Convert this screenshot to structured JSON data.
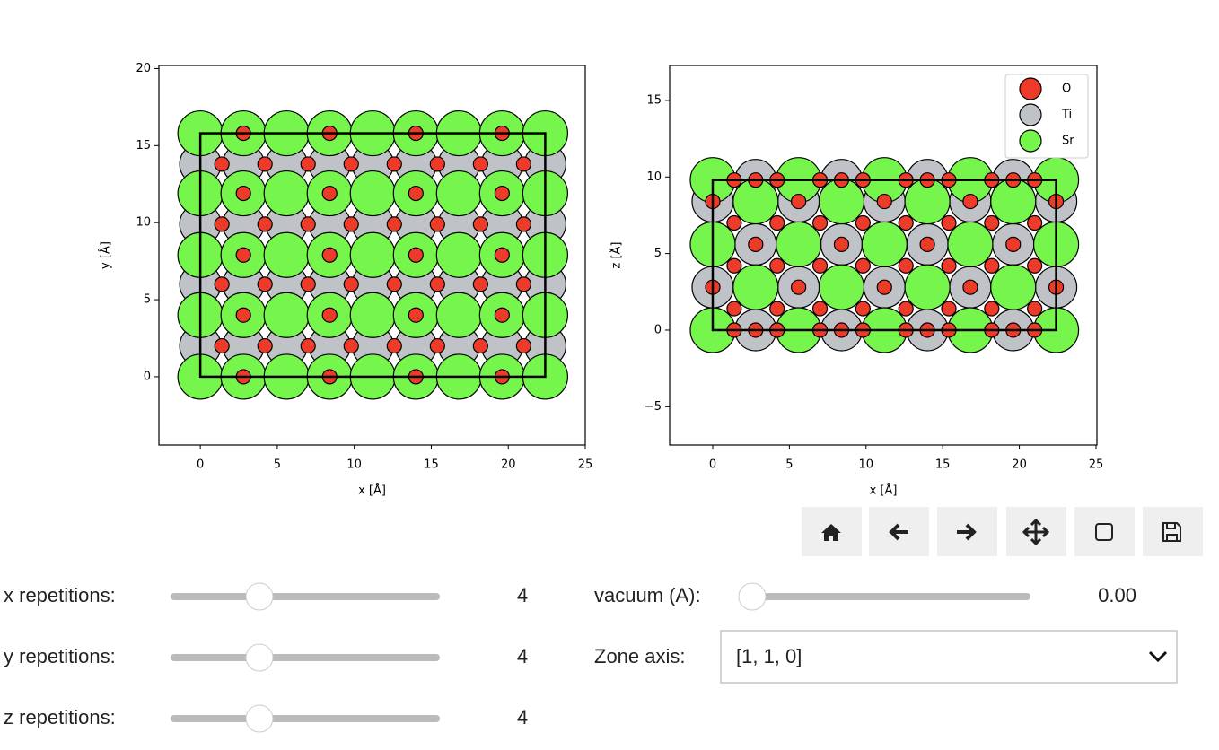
{
  "chart_data": [
    {
      "type": "scatter",
      "xlabel": "x [Å]",
      "ylabel": "y [Å]",
      "xlim": [
        -2.69,
        25
      ],
      "ylim": [
        -4.43,
        20.2
      ],
      "xticks": [
        0,
        5,
        10,
        15,
        20,
        25
      ],
      "yticks": [
        0,
        5,
        10,
        15,
        20
      ],
      "cell": [
        22.4,
        15.8
      ],
      "series": [
        {
          "color": "#ed3b2a",
          "x": [
            2.8,
            8.4,
            14,
            19.6,
            2.8,
            8.4,
            14,
            19.6,
            2.8,
            8.4,
            14,
            19.6,
            2.8,
            8.4,
            14,
            19.6,
            2.8,
            8.4,
            14,
            19.6,
            1.4,
            4.2,
            7,
            9.8,
            12.6,
            15.4,
            18.2,
            21,
            1.4,
            4.2,
            7,
            9.8,
            12.6,
            15.4,
            18.2,
            21,
            1.4,
            4.2,
            7,
            9.8,
            12.6,
            15.4,
            18.2,
            21,
            1.4,
            4.2,
            7,
            9.8,
            12.6,
            15.4,
            18.2,
            21
          ],
          "y": [
            0,
            0,
            0,
            0,
            4,
            4,
            4,
            4,
            7.9,
            7.9,
            7.9,
            7.9,
            11.9,
            11.9,
            11.9,
            11.9,
            15.8,
            15.8,
            15.8,
            15.8,
            2,
            2,
            2,
            2,
            2,
            2,
            2,
            2,
            6,
            6,
            6,
            6,
            6,
            6,
            6,
            6,
            9.9,
            9.9,
            9.9,
            9.9,
            9.9,
            9.9,
            9.9,
            9.9,
            13.8,
            13.8,
            13.8,
            13.8,
            13.8,
            13.8,
            13.8,
            13.8
          ]
        },
        {
          "color": "#bfc2c7",
          "x": [
            0,
            2.8,
            5.6,
            8.4,
            11.2,
            14,
            16.8,
            19.6,
            22.4,
            0,
            2.8,
            5.6,
            8.4,
            11.2,
            14,
            16.8,
            19.6,
            22.4,
            0,
            2.8,
            5.6,
            8.4,
            11.2,
            14,
            16.8,
            19.6,
            22.4,
            0,
            2.8,
            5.6,
            8.4,
            11.2,
            14,
            16.8,
            19.6,
            22.4
          ],
          "y": [
            2,
            2,
            2,
            2,
            2,
            2,
            2,
            2,
            2,
            6,
            6,
            6,
            6,
            6,
            6,
            6,
            6,
            6,
            9.9,
            9.9,
            9.9,
            9.9,
            9.9,
            9.9,
            9.9,
            9.9,
            9.9,
            13.8,
            13.8,
            13.8,
            13.8,
            13.8,
            13.8,
            13.8,
            13.8,
            13.8
          ]
        },
        {
          "color": "#76f54c",
          "x": [
            0,
            2.8,
            5.6,
            8.4,
            11.2,
            14,
            16.8,
            19.6,
            22.4,
            0,
            2.8,
            5.6,
            8.4,
            11.2,
            14,
            16.8,
            19.6,
            22.4,
            0,
            2.8,
            5.6,
            8.4,
            11.2,
            14,
            16.8,
            19.6,
            22.4,
            0,
            2.8,
            5.6,
            8.4,
            11.2,
            14,
            16.8,
            19.6,
            22.4,
            0,
            2.8,
            5.6,
            8.4,
            11.2,
            14,
            16.8,
            19.6,
            22.4
          ],
          "y": [
            0,
            0,
            0,
            0,
            0,
            0,
            0,
            0,
            0,
            4,
            4,
            4,
            4,
            4,
            4,
            4,
            4,
            4,
            7.9,
            7.9,
            7.9,
            7.9,
            7.9,
            7.9,
            7.9,
            7.9,
            7.9,
            11.9,
            11.9,
            11.9,
            11.9,
            11.9,
            11.9,
            11.9,
            11.9,
            11.9,
            15.8,
            15.8,
            15.8,
            15.8,
            15.8,
            15.8,
            15.8,
            15.8,
            15.8
          ]
        }
      ]
    },
    {
      "type": "scatter",
      "xlabel": "x [Å]",
      "ylabel": "z [Å]",
      "xlim": [
        -2.81,
        25.06
      ],
      "ylim": [
        -7.5,
        17.28
      ],
      "xticks": [
        0,
        5,
        10,
        15,
        20,
        25
      ],
      "yticks": [
        {
          "value": -5,
          "label": "−5"
        },
        0,
        5,
        10,
        15
      ],
      "cell": [
        22.4,
        9.8
      ],
      "legend": "upper right",
      "series": [
        {
          "name": "O",
          "color": "#ed3b2a",
          "x": [
            1.4,
            4.2,
            7,
            9.8,
            12.6,
            15.4,
            18.2,
            21,
            2.8,
            8.4,
            14,
            19.6,
            1.4,
            4.2,
            7,
            9.8,
            12.6,
            15.4,
            18.2,
            21,
            0,
            5.6,
            11.2,
            16.8,
            22.4,
            1.4,
            4.2,
            7,
            9.8,
            12.6,
            15.4,
            18.2,
            21,
            2.8,
            8.4,
            14,
            19.6,
            1.4,
            4.2,
            7,
            9.8,
            12.6,
            15.4,
            18.2,
            21,
            0,
            5.6,
            11.2,
            16.8,
            22.4,
            1.4,
            4.2,
            7,
            9.8,
            12.6,
            15.4,
            18.2,
            21,
            2.8,
            8.4,
            14,
            19.6
          ],
          "y": [
            0,
            0,
            0,
            0,
            0,
            0,
            0,
            0,
            0,
            0,
            0,
            0,
            1.4,
            1.4,
            1.4,
            1.4,
            1.4,
            1.4,
            1.4,
            1.4,
            2.8,
            2.8,
            2.8,
            2.8,
            2.8,
            4.2,
            4.2,
            4.2,
            4.2,
            4.2,
            4.2,
            4.2,
            4.2,
            5.6,
            5.6,
            5.6,
            5.6,
            7,
            7,
            7,
            7,
            7,
            7,
            7,
            7,
            8.4,
            8.4,
            8.4,
            8.4,
            8.4,
            9.8,
            9.8,
            9.8,
            9.8,
            9.8,
            9.8,
            9.8,
            9.8,
            9.8,
            9.8,
            9.8,
            9.8
          ]
        },
        {
          "name": "Ti",
          "color": "#bfc2c7",
          "x": [
            2.8,
            8.4,
            14,
            19.6,
            0,
            5.6,
            11.2,
            16.8,
            22.4,
            2.8,
            8.4,
            14,
            19.6,
            0,
            5.6,
            11.2,
            16.8,
            22.4,
            2.8,
            8.4,
            14,
            19.6
          ],
          "y": [
            0,
            0,
            0,
            0,
            2.8,
            2.8,
            2.8,
            2.8,
            2.8,
            5.6,
            5.6,
            5.6,
            5.6,
            8.4,
            8.4,
            8.4,
            8.4,
            8.4,
            9.8,
            9.8,
            9.8,
            9.8
          ]
        },
        {
          "name": "Sr",
          "color": "#76f54c",
          "x": [
            0,
            5.6,
            11.2,
            16.8,
            22.4,
            2.8,
            8.4,
            14,
            19.6,
            0,
            5.6,
            11.2,
            16.8,
            22.4,
            2.8,
            8.4,
            14,
            19.6,
            0,
            5.6,
            11.2,
            16.8,
            22.4
          ],
          "y": [
            0,
            0,
            0,
            0,
            0,
            2.8,
            2.8,
            2.8,
            2.8,
            5.6,
            5.6,
            5.6,
            5.6,
            5.6,
            8.4,
            8.4,
            8.4,
            8.4,
            9.8,
            9.8,
            9.8,
            9.8,
            9.8
          ]
        }
      ]
    }
  ],
  "widgets": {
    "sliders": [
      {
        "label": "x repetitions:",
        "value": 4
      },
      {
        "label": "y repetitions:",
        "value": 4
      },
      {
        "label": "z repetitions:",
        "value": 4
      }
    ],
    "vacuum": {
      "label": "vacuum (A):",
      "value": "0.00"
    },
    "zone_axis": {
      "label": "Zone axis:",
      "value": "[1, 1, 0]"
    }
  }
}
